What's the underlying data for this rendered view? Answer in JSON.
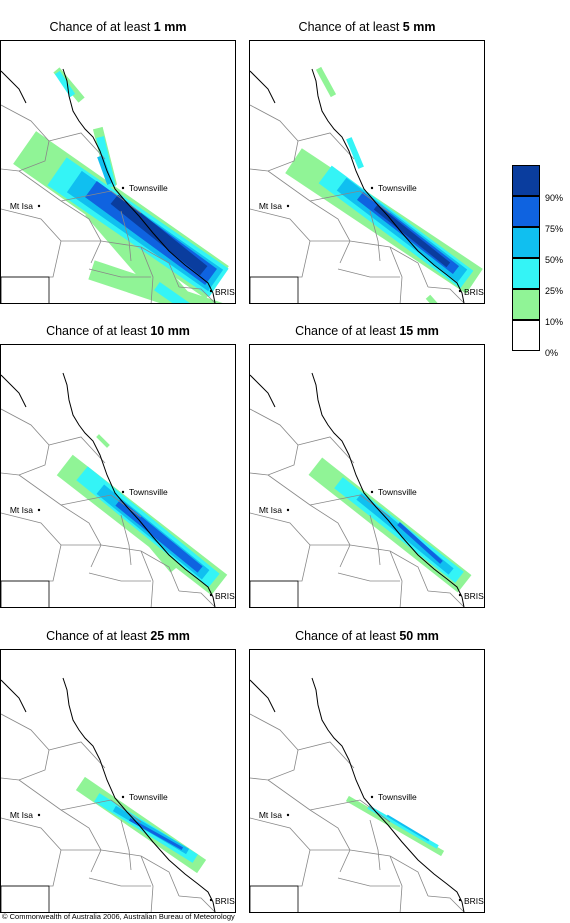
{
  "panels": [
    {
      "prefix": "Chance of at least ",
      "amount": "1 mm",
      "cities": {
        "townsville": "Townsville",
        "mount_isa": "Mt Isa",
        "brisbane": "BRIS"
      }
    },
    {
      "prefix": "Chance of at least ",
      "amount": "5 mm",
      "cities": {
        "townsville": "Townsville",
        "mount_isa": "Mt Isa",
        "brisbane": "BRIS"
      }
    },
    {
      "prefix": "Chance of at least ",
      "amount": "10 mm",
      "cities": {
        "townsville": "Townsville",
        "mount_isa": "Mt Isa",
        "brisbane": "BRIS"
      }
    },
    {
      "prefix": "Chance of at least ",
      "amount": "15 mm",
      "cities": {
        "townsville": "Townsville",
        "mount_isa": "Mt Isa",
        "brisbane": "BRIS"
      }
    },
    {
      "prefix": "Chance of at least ",
      "amount": "25 mm",
      "cities": {
        "townsville": "Townsville",
        "mount_isa": "Mt Isa",
        "brisbane": "BRIS"
      }
    },
    {
      "prefix": "Chance of at least ",
      "amount": "50 mm",
      "cities": {
        "townsville": "Townsville",
        "mount_isa": "Mt Isa",
        "brisbane": "BRIS"
      }
    }
  ],
  "legend": {
    "labels": [
      "90%",
      "75%",
      "50%",
      "25%",
      "10%",
      "0%"
    ],
    "colors": [
      "#0a3d9e",
      "#0f63e0",
      "#10bff0",
      "#34f4f6",
      "#90f496",
      "#ffffff"
    ]
  },
  "copyright": "© Commonwealth of Australia 2006, Australian Bureau of Meteorology"
}
